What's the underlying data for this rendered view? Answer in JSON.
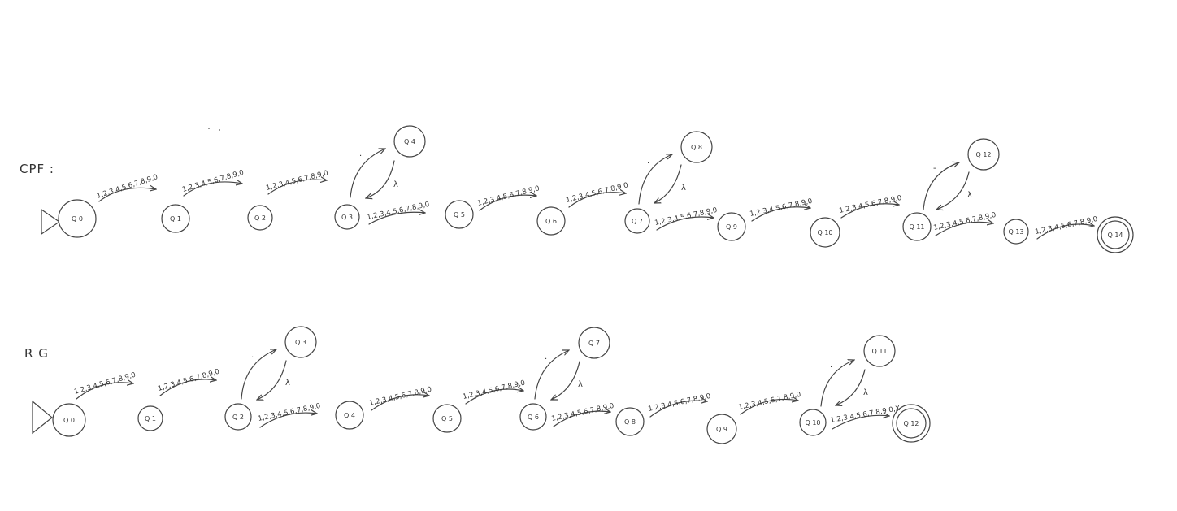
{
  "diagrams": [
    {
      "id": "cpf",
      "title": "CPF :",
      "states": [
        {
          "id": "q0",
          "label": "Q 0",
          "initial": true,
          "final": false
        },
        {
          "id": "q1",
          "label": "Q 1",
          "initial": false,
          "final": false
        },
        {
          "id": "q2",
          "label": "Q 2",
          "initial": false,
          "final": false
        },
        {
          "id": "q3",
          "label": "Q 3",
          "initial": false,
          "final": false
        },
        {
          "id": "q4",
          "label": "Q 4",
          "initial": false,
          "final": false
        },
        {
          "id": "q5",
          "label": "Q 5",
          "initial": false,
          "final": false
        },
        {
          "id": "q6",
          "label": "Q 6",
          "initial": false,
          "final": false
        },
        {
          "id": "q7",
          "label": "Q 7",
          "initial": false,
          "final": false
        },
        {
          "id": "q8",
          "label": "Q 8",
          "initial": false,
          "final": false
        },
        {
          "id": "q9",
          "label": "Q 9",
          "initial": false,
          "final": false
        },
        {
          "id": "q10",
          "label": "Q 10",
          "initial": false,
          "final": false
        },
        {
          "id": "q11",
          "label": "Q 11",
          "initial": false,
          "final": false
        },
        {
          "id": "q12",
          "label": "Q 12",
          "initial": false,
          "final": false
        },
        {
          "id": "q13",
          "label": "Q 13",
          "initial": false,
          "final": false
        },
        {
          "id": "q14",
          "label": "Q 14",
          "initial": false,
          "final": true
        }
      ],
      "transitions": [
        {
          "from": "q0",
          "to": "q1",
          "label": "1,2,3,4,5,6,7,8,9,0"
        },
        {
          "from": "q1",
          "to": "q2",
          "label": "1,2,3,4,5,6,7,8,9,0"
        },
        {
          "from": "q2",
          "to": "q3",
          "label": "1,2,3,4,5,6,7,8,9,0"
        },
        {
          "from": "q3",
          "to": "q4",
          "label": "."
        },
        {
          "from": "q4",
          "to": "q3",
          "label": "λ"
        },
        {
          "from": "q3",
          "to": "q5",
          "label": "1,2,3,4,5,6,7,8,9,0"
        },
        {
          "from": "q5",
          "to": "q6",
          "label": "1,2,3,4,5,6,7,8,9,0"
        },
        {
          "from": "q6",
          "to": "q7",
          "label": "1,2,3,4,5,6,7,8,9,0"
        },
        {
          "from": "q7",
          "to": "q8",
          "label": "."
        },
        {
          "from": "q8",
          "to": "q7",
          "label": "λ"
        },
        {
          "from": "q7",
          "to": "q9",
          "label": "1,2,3,4,5,6,7,8,9,0"
        },
        {
          "from": "q9",
          "to": "q10",
          "label": "1,2,3,4,5,6,7,8,9,0"
        },
        {
          "from": "q10",
          "to": "q11",
          "label": "1,2,3,4,5,6,7,8,9,0"
        },
        {
          "from": "q11",
          "to": "q12",
          "label": "-"
        },
        {
          "from": "q12",
          "to": "q11",
          "label": "λ"
        },
        {
          "from": "q11",
          "to": "q13",
          "label": "1,2,3,4,5,6,7,8,9,0"
        },
        {
          "from": "q13",
          "to": "q14",
          "label": "1,2,3,4,5,6,7,8,9,0"
        }
      ]
    },
    {
      "id": "rg",
      "title": "R G",
      "states": [
        {
          "id": "q0",
          "label": "Q 0",
          "initial": true,
          "final": false
        },
        {
          "id": "q1",
          "label": "Q 1",
          "initial": false,
          "final": false
        },
        {
          "id": "q2",
          "label": "Q 2",
          "initial": false,
          "final": false
        },
        {
          "id": "q3",
          "label": "Q 3",
          "initial": false,
          "final": false
        },
        {
          "id": "q4",
          "label": "Q 4",
          "initial": false,
          "final": false
        },
        {
          "id": "q5",
          "label": "Q 5",
          "initial": false,
          "final": false
        },
        {
          "id": "q6",
          "label": "Q 6",
          "initial": false,
          "final": false
        },
        {
          "id": "q7",
          "label": "Q 7",
          "initial": false,
          "final": false
        },
        {
          "id": "q8",
          "label": "Q 8",
          "initial": false,
          "final": false
        },
        {
          "id": "q9",
          "label": "Q 9",
          "initial": false,
          "final": false
        },
        {
          "id": "q10",
          "label": "Q 10",
          "initial": false,
          "final": false
        },
        {
          "id": "q11",
          "label": "Q 11",
          "initial": false,
          "final": false
        },
        {
          "id": "q12",
          "label": "Q 12",
          "initial": false,
          "final": true
        }
      ],
      "transitions": [
        {
          "from": "q0",
          "to": "q1",
          "label": "1,2,3,4,5,6,7,8,9,0"
        },
        {
          "from": "q1",
          "to": "q2",
          "label": "1,2,3,4,5,6,7,8,9,0"
        },
        {
          "from": "q2",
          "to": "q3",
          "label": "."
        },
        {
          "from": "q3",
          "to": "q2",
          "label": "λ"
        },
        {
          "from": "q2",
          "to": "q4",
          "label": "1,2,3,4,5,6,7,8,9,0"
        },
        {
          "from": "q4",
          "to": "q5",
          "label": "1,2,3,4,5,6,7,8,9,0"
        },
        {
          "from": "q5",
          "to": "q6",
          "label": "1,2,3,4,5,6,7,8,9,0"
        },
        {
          "from": "q6",
          "to": "q7",
          "label": "."
        },
        {
          "from": "q7",
          "to": "q6",
          "label": "λ"
        },
        {
          "from": "q6",
          "to": "q8",
          "label": "1,2,3,4,5,6,7,8,9,0"
        },
        {
          "from": "q8",
          "to": "q9",
          "label": "1,2,3,4,5,6,7,8,9,0"
        },
        {
          "from": "q9",
          "to": "q10",
          "label": "1,2,3,4,5,6,7,8,9,0"
        },
        {
          "from": "q10",
          "to": "q11",
          "label": "."
        },
        {
          "from": "q11",
          "to": "q10",
          "label": "λ"
        },
        {
          "from": "q10",
          "to": "q12",
          "label": "1,2,3,4,5,6,7,8,9,0,X"
        }
      ]
    }
  ]
}
